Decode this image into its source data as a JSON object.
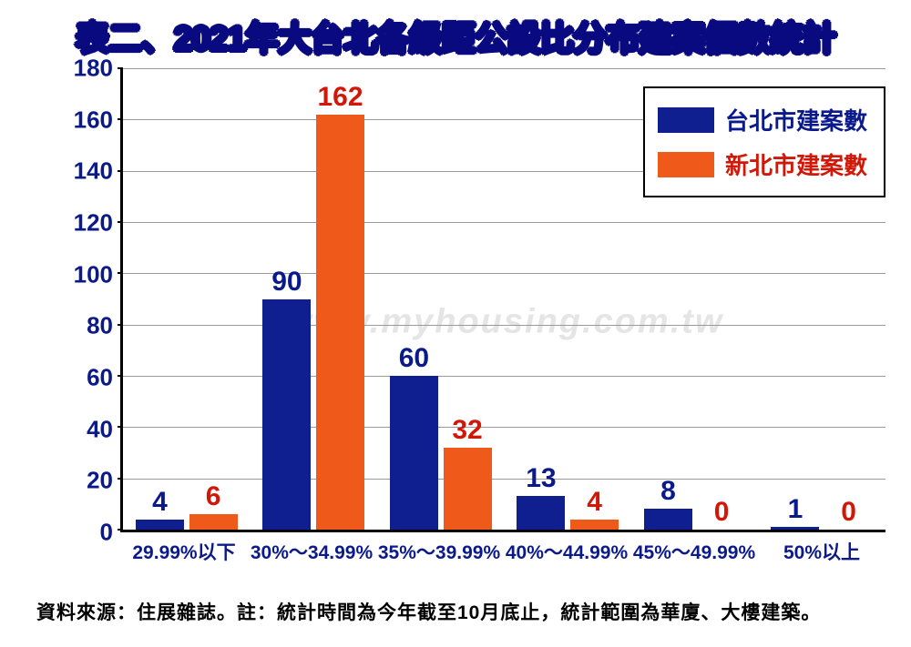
{
  "title": "表二、2021年大台北各級距公設比分布建案個數統計",
  "footer": "資料來源：住展雜誌。註：統計時間為今年截至10月底止，統計範圍為華廈、大樓建築。",
  "watermark": "www.myhousing.com.tw",
  "chart": {
    "type": "bar",
    "ylim": [
      0,
      180
    ],
    "ytick_step": 20,
    "y_ticks": [
      0,
      20,
      40,
      60,
      80,
      100,
      120,
      140,
      160,
      180
    ],
    "grid_color": "#9a9a9a",
    "axis_color": "#000000",
    "axis_label_color": "#0b1a8a",
    "axis_label_fontsize": 26,
    "x_label_fontsize": 21,
    "bar_label_fontsize": 30,
    "categories": [
      "29.99%以下",
      "30%～34.99%",
      "35%～39.99%",
      "40%～44.99%",
      "45%～49.99%",
      "50%以上"
    ],
    "series": [
      {
        "name": "台北市建案數",
        "color": "#0f1f8f",
        "label_color": "#0b1a8a",
        "values": [
          4,
          90,
          60,
          13,
          8,
          1
        ]
      },
      {
        "name": "新北市建案數",
        "color": "#ef5a1a",
        "label_color": "#d11808",
        "values": [
          6,
          162,
          32,
          4,
          0,
          0
        ]
      }
    ],
    "legend": {
      "border_color": "#000000",
      "background": "#ffffff",
      "swatch_width": 62,
      "swatch_height": 28,
      "fontsize": 26
    }
  }
}
